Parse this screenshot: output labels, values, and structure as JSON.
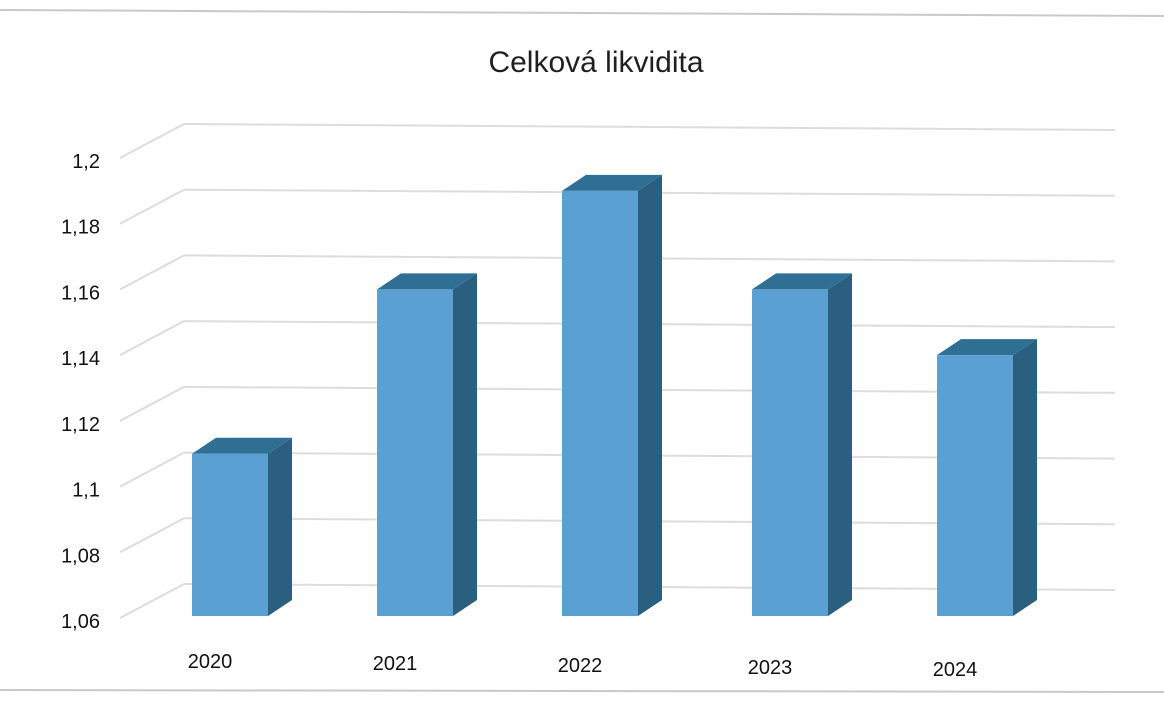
{
  "chart_data": {
    "type": "bar",
    "title": "Celková likvidita",
    "xlabel": "",
    "ylabel": "",
    "categories": [
      "2020",
      "2021",
      "2022",
      "2023",
      "2024"
    ],
    "values": [
      1.11,
      1.16,
      1.19,
      1.16,
      1.14
    ],
    "ylim": [
      1.06,
      1.2
    ],
    "ytick_labels": [
      "1,06",
      "1,08",
      "1,1",
      "1,12",
      "1,14",
      "1,16",
      "1,18",
      "1,2"
    ],
    "grid": true,
    "legend": "none",
    "colors": {
      "bar_front": "#5aa0d2",
      "bar_top": "#2f6f94",
      "bar_side": "#2a5f80",
      "grid": "#dcdcdc"
    }
  }
}
